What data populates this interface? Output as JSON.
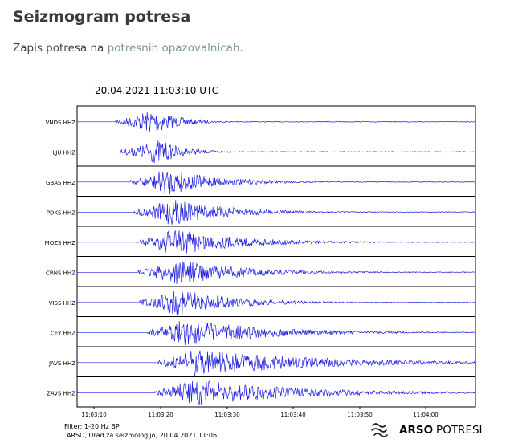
{
  "page": {
    "title": "Seizmogram potresa",
    "intro_prefix": "Zapis potresa na ",
    "intro_link": "potresnih opazovalnicah",
    "intro_suffix": "."
  },
  "seismogram": {
    "datetime": "20.04.2021  11:03:10 UTC",
    "stations": [
      "VNDS HHZ",
      "LJU HHZ",
      "GBAS HHZ",
      "PDKS HHZ",
      "MOZS HHZ",
      "CRNS HHZ",
      "VISS HHZ",
      "CEY HHZ",
      "JAVS HHZ",
      "ZAVS HHZ"
    ],
    "time_ticks": [
      "11:03:10",
      "11:03:20",
      "11:03:30",
      "11:03:40",
      "11:03:50",
      "11:04:00"
    ],
    "trace_color": "#1f1fe0",
    "filter_note": "Filter: 1-20 Hz BP",
    "credit": "ARSO, Urad za seizmologijo, 20.04.2021  11:06",
    "logo_text": {
      "bold": "ARSO",
      "light": "POTRESI"
    }
  }
}
